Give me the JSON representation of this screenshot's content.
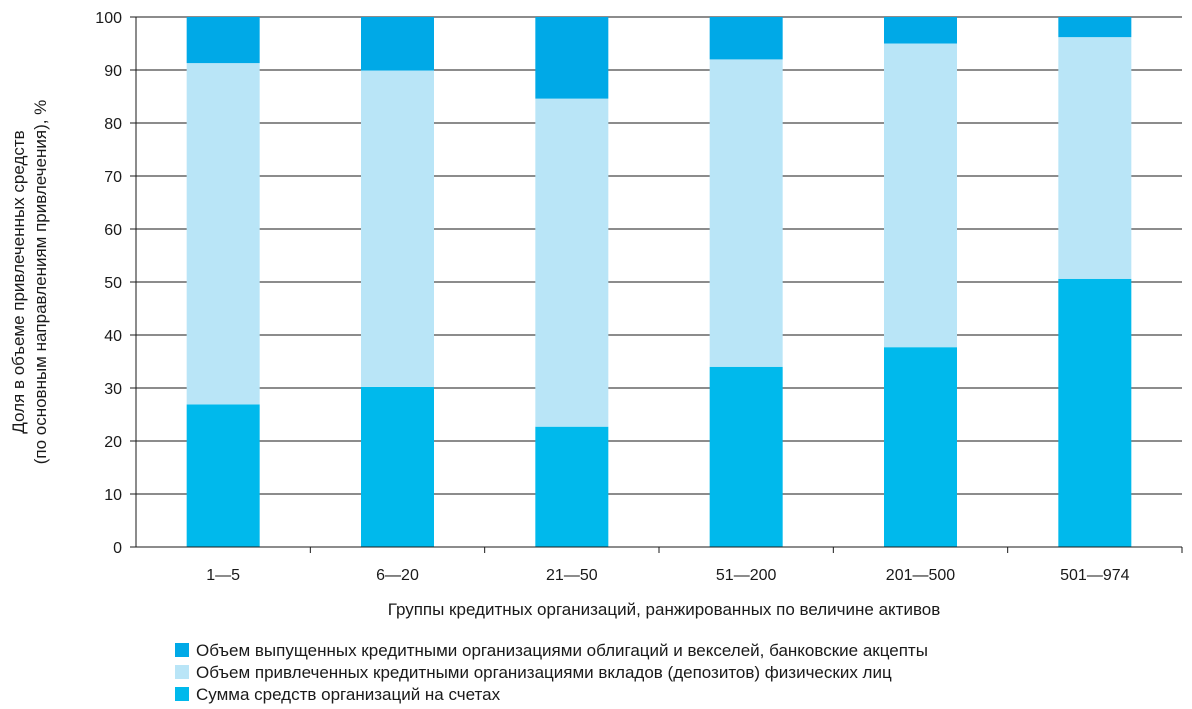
{
  "chart_data": {
    "type": "bar",
    "stacked": true,
    "title": "",
    "xlabel": "Группы кредитных организаций, ранжированных по величине активов",
    "ylabel_lines": [
      "Доля в  объеме привлеченных средств",
      "(по основным направлениям привлечения), %"
    ],
    "ylim": [
      0,
      100
    ],
    "yticks": [
      0,
      10,
      20,
      30,
      40,
      50,
      60,
      70,
      80,
      90,
      100
    ],
    "grid": true,
    "legend_position": "bottom",
    "categories": [
      "1—5",
      "6—20",
      "21—50",
      "51—200",
      "201—500",
      "501—974"
    ],
    "series": [
      {
        "name": "Сумма средств организаций на счетах",
        "color": "#00b9ec",
        "values": [
          26.9,
          30.2,
          22.7,
          34.0,
          37.7,
          50.6
        ]
      },
      {
        "name": "Объем привлеченных кредитными организациями вкладов (депозитов) физических лиц",
        "color": "#b9e5f7",
        "values": [
          64.4,
          59.7,
          61.9,
          58.0,
          57.3,
          45.6
        ]
      },
      {
        "name": "Объем выпущенных кредитными организациями облигаций и векселей, банковские акцепты",
        "color": "#00a9e7",
        "values": [
          8.7,
          10.1,
          15.4,
          8.0,
          5.0,
          3.8
        ]
      }
    ],
    "legend_order": [
      2,
      1,
      0
    ]
  }
}
